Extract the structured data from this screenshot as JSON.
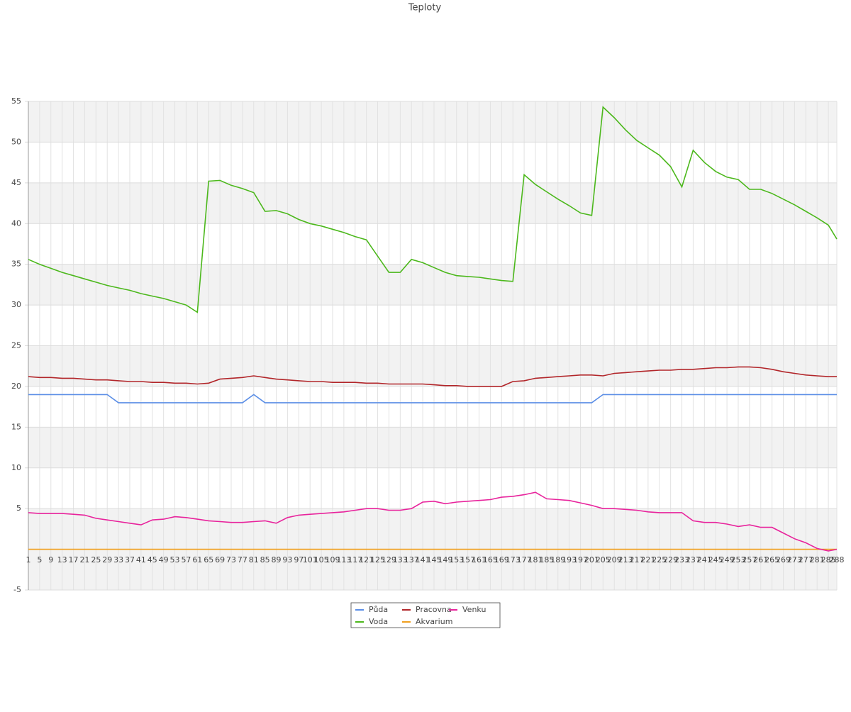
{
  "chart_data": {
    "type": "line",
    "title": "Teploty",
    "x": [
      1,
      5,
      9,
      13,
      17,
      21,
      25,
      29,
      33,
      37,
      41,
      45,
      49,
      53,
      57,
      61,
      65,
      69,
      73,
      77,
      81,
      85,
      89,
      93,
      97,
      101,
      105,
      109,
      113,
      117,
      121,
      125,
      129,
      133,
      137,
      141,
      145,
      149,
      153,
      157,
      161,
      165,
      169,
      173,
      177,
      181,
      185,
      189,
      193,
      197,
      201,
      205,
      209,
      213,
      217,
      221,
      225,
      229,
      233,
      237,
      241,
      245,
      249,
      253,
      257,
      261,
      265,
      269,
      273,
      277,
      281,
      285,
      288
    ],
    "xlim": [
      1,
      288
    ],
    "ylim": [
      -5,
      55
    ],
    "yticks": [
      -5,
      5,
      10,
      15,
      20,
      25,
      30,
      35,
      40,
      45,
      50,
      55
    ],
    "grid": true,
    "legend": "bottom",
    "series": [
      {
        "name": "Půda",
        "color": "#5b8ee6",
        "values": [
          19,
          19,
          19,
          19,
          19,
          19,
          19,
          19,
          18,
          18,
          18,
          18,
          18,
          18,
          18,
          18,
          18,
          18,
          18,
          18,
          19,
          18,
          18,
          18,
          18,
          18,
          18,
          18,
          18,
          18,
          18,
          18,
          18,
          18,
          18,
          18,
          18,
          18,
          18,
          18,
          18,
          18,
          18,
          18,
          18,
          18,
          18,
          18,
          18,
          18,
          18,
          19,
          19,
          19,
          19,
          19,
          19,
          19,
          19,
          19,
          19,
          19,
          19,
          19,
          19,
          19,
          19,
          19,
          19,
          19,
          19,
          19,
          19
        ]
      },
      {
        "name": "Voda",
        "color": "#4cb81c",
        "values": [
          35.6,
          35,
          34.5,
          34,
          33.6,
          33.2,
          32.8,
          32.4,
          32.1,
          31.8,
          31.4,
          31.1,
          30.8,
          30.4,
          30,
          29.1,
          45.2,
          45.3,
          44.7,
          44.3,
          43.8,
          41.5,
          41.6,
          41.2,
          40.5,
          40,
          39.7,
          39.3,
          38.9,
          38.4,
          38,
          36,
          34,
          34,
          35.6,
          35.2,
          34.6,
          34,
          33.6,
          33.5,
          33.4,
          33.2,
          33,
          32.9,
          46,
          44.8,
          43.9,
          43,
          42.2,
          41.3,
          41,
          54.3,
          53,
          51.5,
          50.2,
          49.3,
          48.4,
          47,
          44.5,
          49,
          47.5,
          46.4,
          45.7,
          45.4,
          44.2,
          44.2,
          43.7,
          43,
          42.3,
          41.5,
          40.7,
          39.8,
          38.1
        ]
      },
      {
        "name": "Pracovna",
        "color": "#b2262a",
        "values": [
          21.2,
          21.1,
          21.1,
          21,
          21,
          20.9,
          20.8,
          20.8,
          20.7,
          20.6,
          20.6,
          20.5,
          20.5,
          20.4,
          20.4,
          20.3,
          20.4,
          20.9,
          21,
          21.1,
          21.3,
          21.1,
          20.9,
          20.8,
          20.7,
          20.6,
          20.6,
          20.5,
          20.5,
          20.5,
          20.4,
          20.4,
          20.3,
          20.3,
          20.3,
          20.3,
          20.2,
          20.1,
          20.1,
          20,
          20,
          20,
          20,
          20.6,
          20.7,
          21,
          21.1,
          21.2,
          21.3,
          21.4,
          21.4,
          21.3,
          21.6,
          21.7,
          21.8,
          21.9,
          22,
          22,
          22.1,
          22.1,
          22.2,
          22.3,
          22.3,
          22.4,
          22.4,
          22.3,
          22.1,
          21.8,
          21.6,
          21.4,
          21.3,
          21.2,
          21.2
        ]
      },
      {
        "name": "Akvarium",
        "color": "#f0a020",
        "values": [
          0,
          0,
          0,
          0,
          0,
          0,
          0,
          0,
          0,
          0,
          0,
          0,
          0,
          0,
          0,
          0,
          0,
          0,
          0,
          0,
          0,
          0,
          0,
          0,
          0,
          0,
          0,
          0,
          0,
          0,
          0,
          0,
          0,
          0,
          0,
          0,
          0,
          0,
          0,
          0,
          0,
          0,
          0,
          0,
          0,
          0,
          0,
          0,
          0,
          0,
          0,
          0,
          0,
          0,
          0,
          0,
          0,
          0,
          0,
          0,
          0,
          0,
          0,
          0,
          0,
          0,
          0,
          0,
          0,
          0,
          0,
          0,
          0
        ]
      },
      {
        "name": "Venku",
        "color": "#e8239c",
        "values": [
          4.5,
          4.4,
          4.4,
          4.4,
          4.3,
          4.2,
          3.8,
          3.6,
          3.4,
          3.2,
          3,
          3.6,
          3.7,
          4,
          3.9,
          3.7,
          3.5,
          3.4,
          3.3,
          3.3,
          3.4,
          3.5,
          3.2,
          3.9,
          4.2,
          4.3,
          4.4,
          4.5,
          4.6,
          4.8,
          5,
          5,
          4.8,
          4.8,
          5,
          5.8,
          5.9,
          5.6,
          5.8,
          5.9,
          6,
          6.1,
          6.4,
          6.5,
          6.7,
          7,
          6.2,
          6.1,
          6,
          5.7,
          5.4,
          5,
          5,
          4.9,
          4.8,
          4.6,
          4.5,
          4.5,
          4.5,
          3.5,
          3.3,
          3.3,
          3.1,
          2.8,
          3,
          2.7,
          2.7,
          2,
          1.3,
          0.8,
          0.1,
          -0.2,
          0
        ]
      }
    ]
  }
}
